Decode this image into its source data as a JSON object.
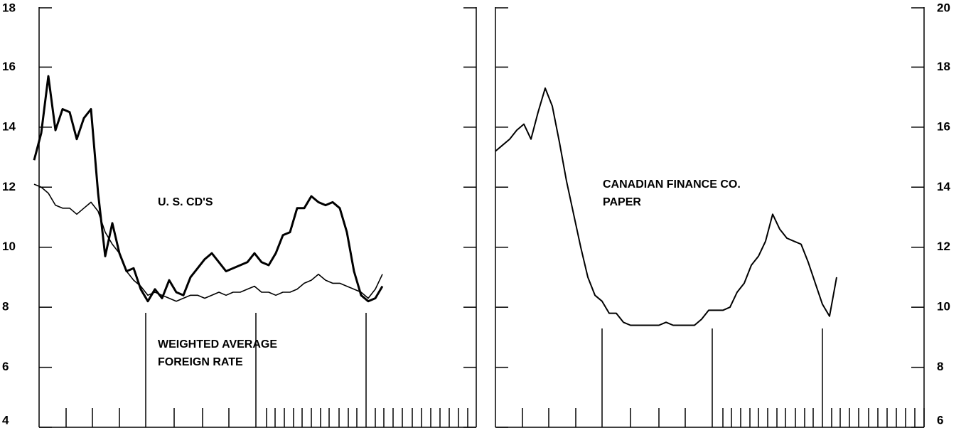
{
  "chart_data": [
    {
      "type": "line",
      "ylim": [
        4,
        18
      ],
      "yticks": [
        4,
        6,
        8,
        10,
        12,
        14,
        16,
        18
      ],
      "y_axis_side": "left",
      "annotations": [
        [
          "U. S. CD'S"
        ],
        [
          "WEIGHTED AVERAGE",
          "FOREIGN RATE"
        ]
      ],
      "series": [
        {
          "color": "#000000",
          "line_width": 3,
          "values": [
            12.9,
            13.8,
            15.7,
            13.9,
            14.6,
            14.5,
            13.6,
            14.3,
            14.6,
            11.8,
            9.7,
            10.8,
            9.8,
            9.2,
            9.3,
            8.6,
            8.2,
            8.6,
            8.3,
            8.9,
            8.5,
            8.4,
            9.0,
            9.3,
            9.6,
            9.8,
            9.5,
            9.2,
            9.3,
            9.4,
            9.5,
            9.8,
            9.5,
            9.4,
            9.8,
            10.4,
            10.5,
            11.3,
            11.3,
            11.7,
            11.5,
            11.4,
            11.5,
            11.3,
            10.5,
            9.2,
            8.4,
            8.2,
            8.3,
            8.7
          ]
        },
        {
          "color": "#000000",
          "line_width": 1.6,
          "values": [
            12.1,
            12.0,
            11.8,
            11.4,
            11.3,
            11.3,
            11.1,
            11.3,
            11.5,
            11.2,
            10.5,
            10.1,
            9.8,
            9.2,
            8.9,
            8.7,
            8.4,
            8.5,
            8.4,
            8.3,
            8.2,
            8.3,
            8.4,
            8.4,
            8.3,
            8.4,
            8.5,
            8.4,
            8.5,
            8.5,
            8.6,
            8.7,
            8.5,
            8.5,
            8.4,
            8.5,
            8.5,
            8.6,
            8.8,
            8.9,
            9.1,
            8.9,
            8.8,
            8.8,
            8.7,
            8.6,
            8.5,
            8.3,
            8.6,
            9.1
          ]
        }
      ]
    },
    {
      "type": "line",
      "ylim": [
        6,
        20
      ],
      "yticks": [
        6,
        8,
        10,
        12,
        14,
        16,
        18,
        20
      ],
      "y_axis_side": "right",
      "annotations": [
        [
          "CANADIAN FINANCE CO.",
          "PAPER"
        ]
      ],
      "series": [
        {
          "color": "#000000",
          "line_width": 2,
          "values": [
            15.2,
            15.4,
            15.6,
            15.9,
            16.1,
            15.6,
            16.5,
            17.3,
            16.7,
            15.5,
            14.2,
            13.1,
            12.0,
            11.0,
            10.4,
            10.2,
            9.8,
            9.8,
            9.5,
            9.4,
            9.4,
            9.4,
            9.4,
            9.4,
            9.5,
            9.4,
            9.4,
            9.4,
            9.4,
            9.6,
            9.9,
            9.9,
            9.9,
            10.0,
            10.5,
            10.8,
            11.4,
            11.7,
            12.2,
            13.1,
            12.6,
            12.3,
            12.2,
            12.1,
            11.5,
            10.8,
            10.1,
            9.7,
            11.0
          ]
        }
      ]
    }
  ]
}
